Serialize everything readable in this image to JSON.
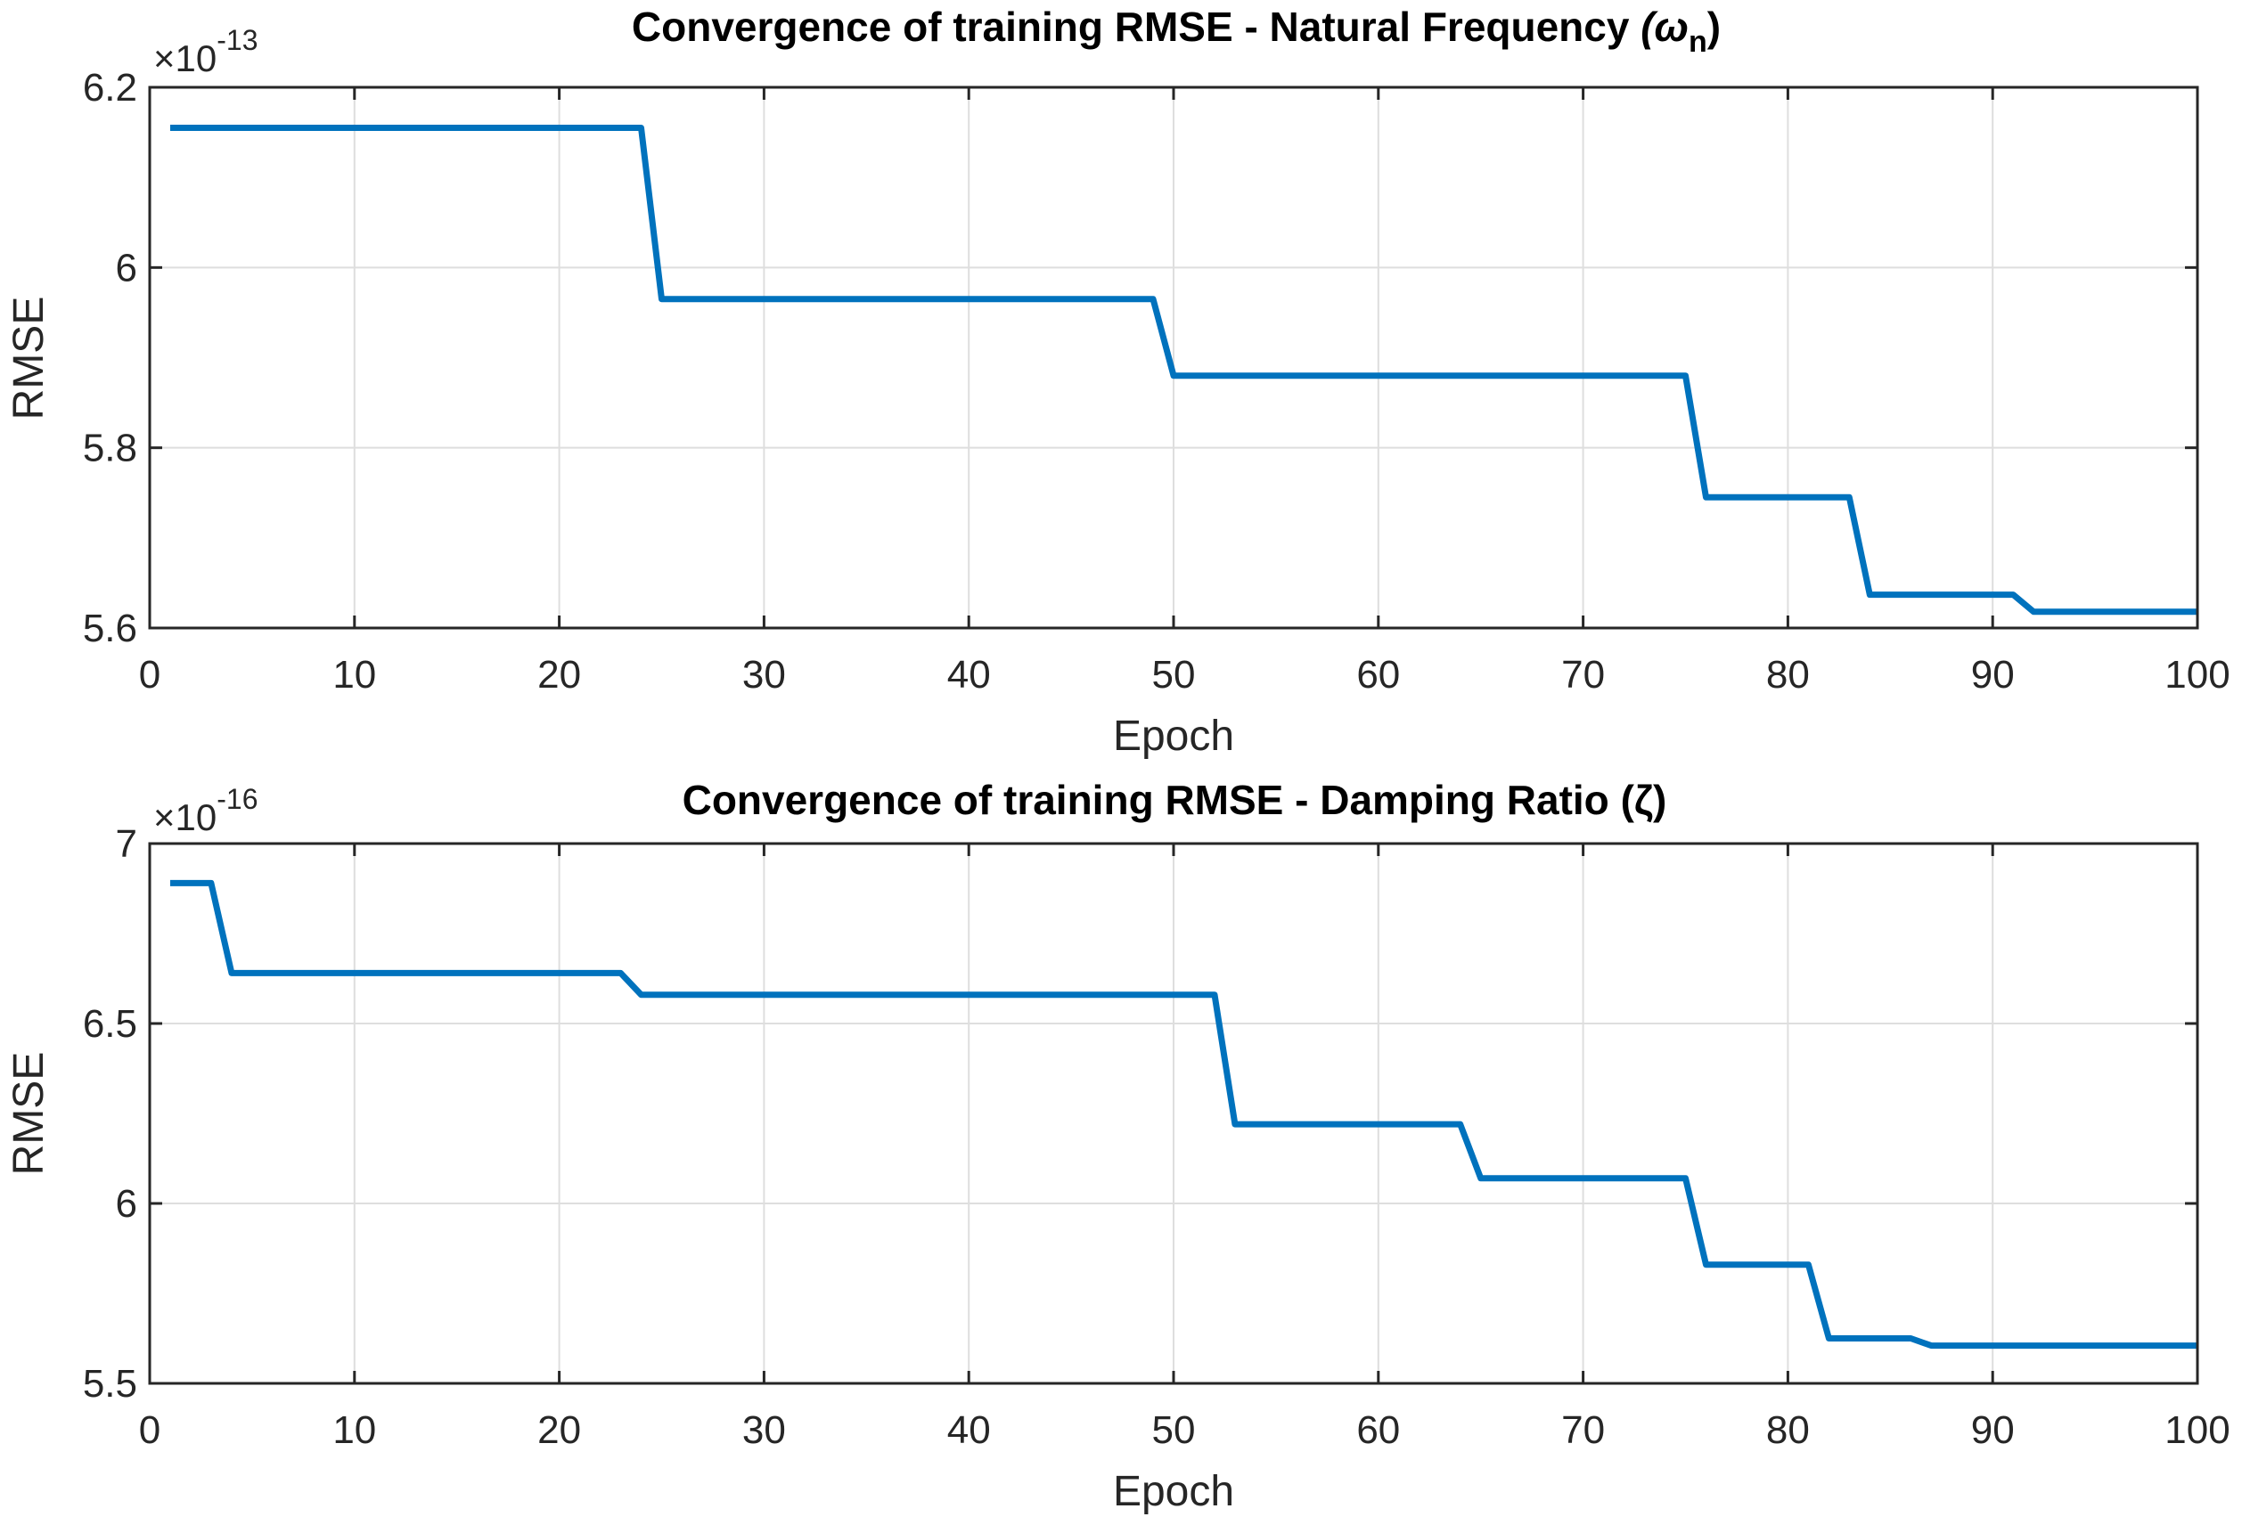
{
  "chart_data": [
    {
      "type": "line",
      "title": "Convergence of training RMSE - Natural Frequency",
      "title_symbol": "(ω",
      "title_subscript": "n",
      "title_close": ")",
      "xlabel": "Epoch",
      "ylabel": "RMSE",
      "xlim": [
        0,
        100
      ],
      "ylim": [
        5.6,
        6.2
      ],
      "xticks": [
        0,
        10,
        20,
        30,
        40,
        50,
        60,
        70,
        80,
        90,
        100
      ],
      "yticks": [
        5.6,
        5.8,
        6,
        6.2
      ],
      "ytick_labels": [
        "5.6",
        "5.8",
        "6",
        "6.2"
      ],
      "y_multiplier_base": "×10",
      "y_multiplier_exponent": "-13",
      "grid": true,
      "line_color": "#0072BD",
      "series": [
        {
          "name": "RMSE",
          "x": [
            1,
            24,
            25,
            49,
            50,
            75,
            76,
            83,
            84,
            91,
            92,
            100
          ],
          "y": [
            6.155,
            6.155,
            5.965,
            5.965,
            5.88,
            5.88,
            5.745,
            5.745,
            5.637,
            5.637,
            5.618,
            5.618
          ]
        }
      ]
    },
    {
      "type": "line",
      "title": "Convergence of training RMSE - Damping Ratio (ζ)",
      "xlabel": "Epoch",
      "ylabel": "RMSE",
      "xlim": [
        0,
        100
      ],
      "ylim": [
        5.5,
        7
      ],
      "xticks": [
        0,
        10,
        20,
        30,
        40,
        50,
        60,
        70,
        80,
        90,
        100
      ],
      "yticks": [
        5.5,
        6,
        6.5,
        7
      ],
      "ytick_labels": [
        "5.5",
        "6",
        "6.5",
        "7"
      ],
      "y_multiplier_base": "×10",
      "y_multiplier_exponent": "-16",
      "grid": true,
      "line_color": "#0072BD",
      "series": [
        {
          "name": "RMSE",
          "x": [
            1,
            3,
            4,
            23,
            24,
            52,
            53,
            64,
            65,
            75,
            76,
            81,
            82,
            86,
            87,
            100
          ],
          "y": [
            6.89,
            6.89,
            6.64,
            6.64,
            6.58,
            6.58,
            6.22,
            6.22,
            6.07,
            6.07,
            5.83,
            5.83,
            5.625,
            5.625,
            5.605,
            5.605
          ]
        }
      ]
    }
  ]
}
